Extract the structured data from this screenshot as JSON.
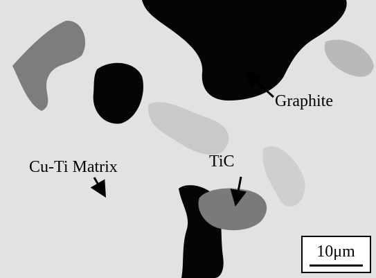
{
  "labels": {
    "graphite": "Graphite",
    "matrix": "Cu-Ti Matrix",
    "tic": "TiC"
  },
  "scale_bar": {
    "label": "10μm"
  }
}
